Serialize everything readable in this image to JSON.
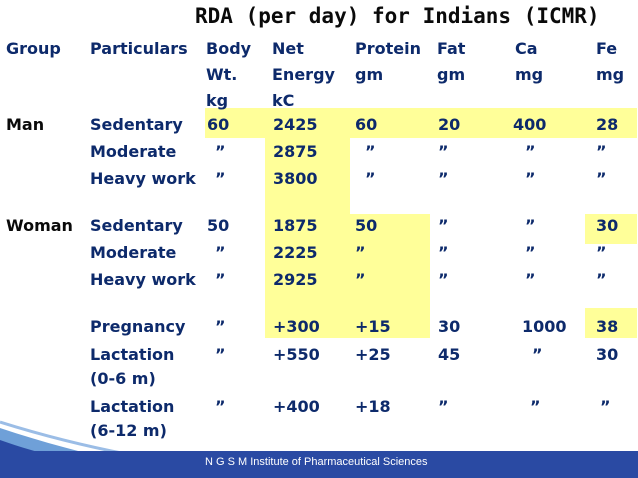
{
  "title": "RDA (per day) for Indians (ICMR)",
  "headers": {
    "group": [
      "Group"
    ],
    "particulars": [
      "Particulars"
    ],
    "body_wt": [
      "Body",
      "Wt.",
      "kg"
    ],
    "net_energy": [
      "Net",
      "Energy",
      "kC"
    ],
    "protein": [
      "Protein",
      "gm"
    ],
    "fat": [
      "Fat",
      "gm"
    ],
    "ca": [
      "Ca",
      "mg"
    ],
    "fe": [
      "Fe",
      "mg"
    ]
  },
  "rows": [
    {
      "group": "Man",
      "particulars": "Sedentary",
      "body_wt": "60",
      "energy": "2425",
      "protein": "60",
      "fat": "20",
      "ca": "400",
      "fe": "28"
    },
    {
      "group": "",
      "particulars": "Moderate",
      "body_wt": "”",
      "energy": "2875",
      "protein": "”",
      "fat": "”",
      "ca": "”",
      "fe": "”"
    },
    {
      "group": "",
      "particulars": "Heavy work",
      "body_wt": "”",
      "energy": "3800",
      "protein": "”",
      "fat": "”",
      "ca": "”",
      "fe": "”"
    },
    {
      "group": "Woman",
      "particulars": "Sedentary",
      "body_wt": "50",
      "energy": "1875",
      "protein": "50",
      "fat": "”",
      "ca": "”",
      "fe": "30"
    },
    {
      "group": "",
      "particulars": "Moderate",
      "body_wt": "”",
      "energy": "2225",
      "protein": "”",
      "fat": "”",
      "ca": "”",
      "fe": "”"
    },
    {
      "group": "",
      "particulars": "Heavy work",
      "body_wt": "”",
      "energy": "2925",
      "protein": "”",
      "fat": "”",
      "ca": "”",
      "fe": "”"
    },
    {
      "group": "",
      "particulars": "Pregnancy",
      "body_wt": "”",
      "energy": "+300",
      "protein": "+15",
      "fat": "30",
      "ca": "1000",
      "fe": "38"
    },
    {
      "group": "",
      "particulars": "Lactation (0-6 m)",
      "body_wt": "”",
      "energy": "+550",
      "protein": "+25",
      "fat": "45",
      "ca": "”",
      "fe": "30"
    },
    {
      "group": "",
      "particulars": "Lactation (6-12 m)",
      "body_wt": "”",
      "energy": "+400",
      "protein": "+18",
      "fat": "”",
      "ca": "”",
      "fe": "”"
    }
  ],
  "footer": "N G S M Institute of Pharmaceutical Sciences",
  "colors": {
    "highlight": "#ffff99",
    "text_blue": "#0d2a6b",
    "footer_bar": "#2a4aa3"
  }
}
